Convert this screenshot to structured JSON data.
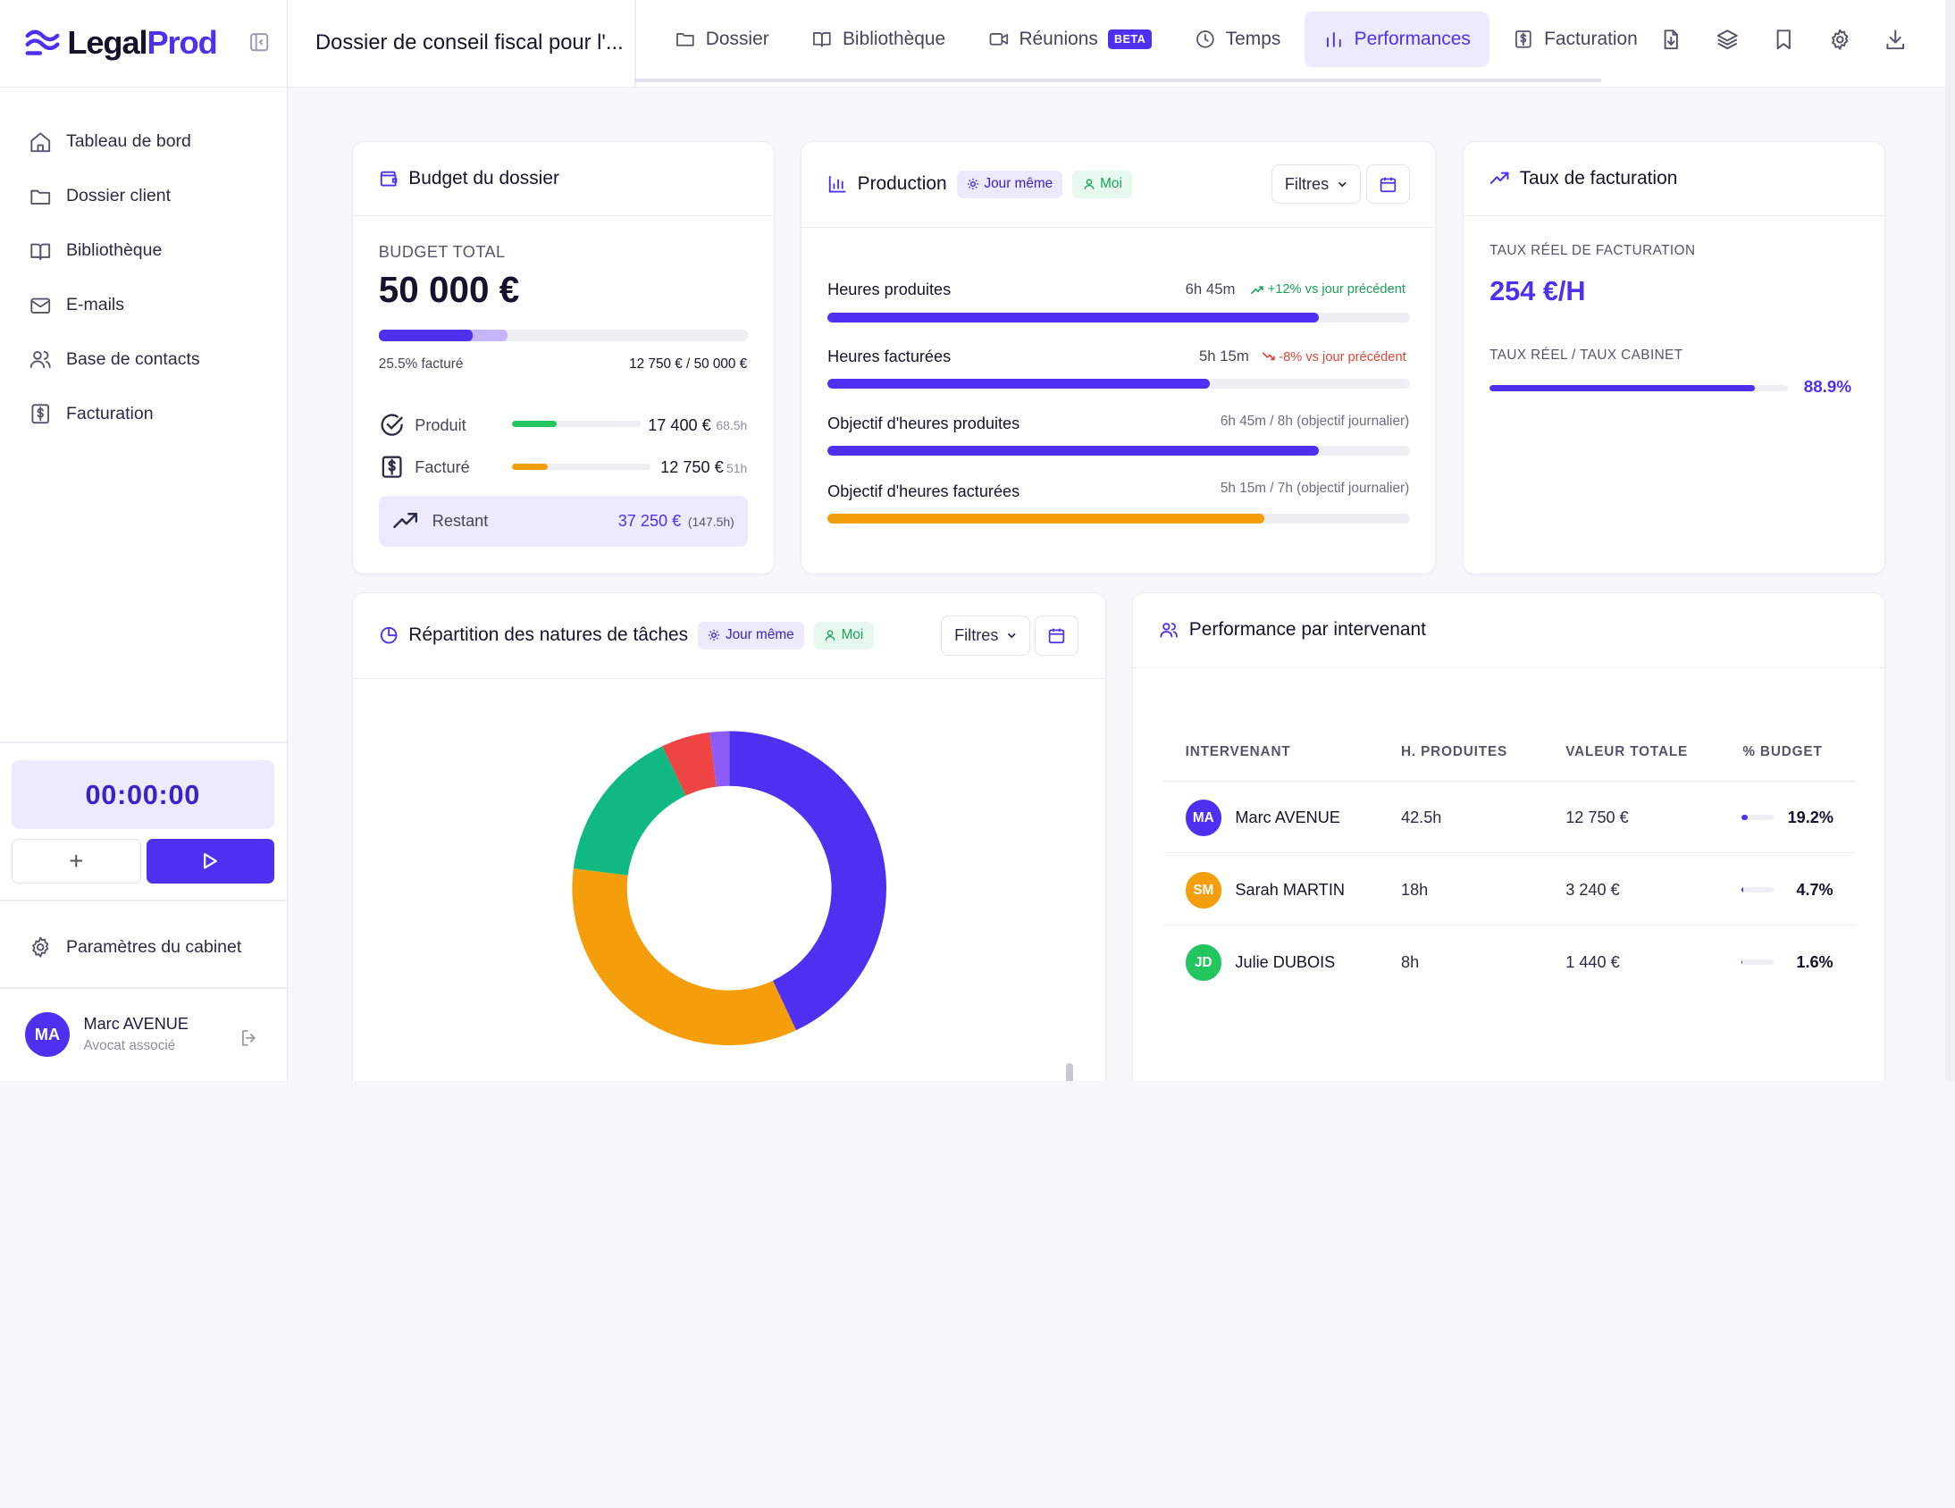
{
  "app": {
    "logo_part1": "Legal",
    "logo_part2": "Prod",
    "brand_color": "#4f2ff0"
  },
  "topbar": {
    "doc_title": "Dossier de conseil fiscal pour l'...",
    "tabs": [
      {
        "label": "Dossier",
        "icon": "folder-icon"
      },
      {
        "label": "Bibliothèque",
        "icon": "book-icon"
      },
      {
        "label": "Réunions",
        "icon": "video-icon",
        "badge": "BETA"
      },
      {
        "label": "Temps",
        "icon": "clock-icon"
      },
      {
        "label": "Performances",
        "icon": "bar-chart-icon",
        "active": true
      },
      {
        "label": "Facturation",
        "icon": "invoice-icon"
      }
    ],
    "tools": [
      "file-download-icon",
      "layers-icon",
      "bookmark-icon",
      "gear-icon",
      "download-icon"
    ]
  },
  "sidebar": {
    "items": [
      {
        "label": "Tableau de bord",
        "icon": "home-icon"
      },
      {
        "label": "Dossier client",
        "icon": "folder-icon"
      },
      {
        "label": "Bibliothèque",
        "icon": "book-icon"
      },
      {
        "label": "E-mails",
        "icon": "mail-icon"
      },
      {
        "label": "Base de contacts",
        "icon": "users-icon"
      },
      {
        "label": "Facturation",
        "icon": "invoice-icon"
      }
    ],
    "timer": "00:00:00",
    "settings_label": "Paramètres du cabinet",
    "user": {
      "initials": "MA",
      "name": "Marc AVENUE",
      "role": "Avocat associé"
    }
  },
  "budget": {
    "title": "Budget du dossier",
    "total_label": "BUDGET TOTAL",
    "total_value": "50 000 €",
    "progress_pct": 25.5,
    "produced_pct": 34.8,
    "billed_text": "25.5% facturé",
    "billed_ratio": "12 750 € / 50 000 €",
    "rows": [
      {
        "label": "Produit",
        "value": "17 400 €",
        "hours": "68.5h",
        "pct": 34.8,
        "color": "#22c55e"
      },
      {
        "label": "Facturé",
        "value": "12 750 €",
        "hours": "51h",
        "pct": 25.5,
        "color": "#f59e0b"
      }
    ],
    "remaining_label": "Restant",
    "remaining_value": "37 250 €",
    "remaining_hours": "(147.5h)"
  },
  "production": {
    "title": "Production",
    "pill_day": "Jour même",
    "pill_me": "Moi",
    "filters_label": "Filtres",
    "rows": [
      {
        "label": "Heures produites",
        "value": "6h 45m",
        "delta": "+12% vs jour précédent",
        "trend": "up",
        "pct": 84.4,
        "color": "#4f2ff0"
      },
      {
        "label": "Heures facturées",
        "value": "5h 15m",
        "delta": "-8% vs jour précédent",
        "trend": "down",
        "pct": 65.6,
        "color": "#4f2ff0"
      },
      {
        "label": "Objectif d'heures produites",
        "value": "6h 45m / 8h (objectif journalier)",
        "pct": 84.4,
        "color": "#4f2ff0"
      },
      {
        "label": "Objectif d'heures facturées",
        "value": "5h 15m / 7h (objectif journalier)",
        "pct": 75,
        "color": "#f59e0b"
      }
    ]
  },
  "rate": {
    "title": "Taux de facturation",
    "real_label": "TAUX RÉEL DE FACTURATION",
    "real_value": "254 €/H",
    "ratio_label": "TAUX RÉEL / TAUX CABINET",
    "ratio_pct": 88.9,
    "ratio_text": "88.9%"
  },
  "tasks": {
    "title": "Répartition des natures de tâches",
    "pill_day": "Jour même",
    "pill_me": "Moi",
    "filters_label": "Filtres"
  },
  "chart_data": {
    "type": "pie",
    "donut": true,
    "values": [
      43,
      34,
      16,
      5,
      2
    ],
    "colors": [
      "#4f2ff0",
      "#f59e0b",
      "#10b981",
      "#ef4444",
      "#8b5cf6"
    ]
  },
  "team": {
    "title": "Performance par intervenant",
    "headers": [
      "INTERVENANT",
      "H. PRODUITES",
      "VALEUR TOTALE",
      "% BUDGET"
    ],
    "rows": [
      {
        "initials": "MA",
        "name": "Marc AVENUE",
        "hours": "42.5h",
        "value": "12 750 €",
        "pct": 19.2,
        "pct_text": "19.2%",
        "color": "#4f2ff0"
      },
      {
        "initials": "SM",
        "name": "Sarah MARTIN",
        "hours": "18h",
        "value": "3 240 €",
        "pct": 4.7,
        "pct_text": "4.7%",
        "color": "#f59e0b"
      },
      {
        "initials": "JD",
        "name": "Julie DUBOIS",
        "hours": "8h",
        "value": "1 440 €",
        "pct": 1.6,
        "pct_text": "1.6%",
        "color": "#22c55e"
      }
    ]
  }
}
